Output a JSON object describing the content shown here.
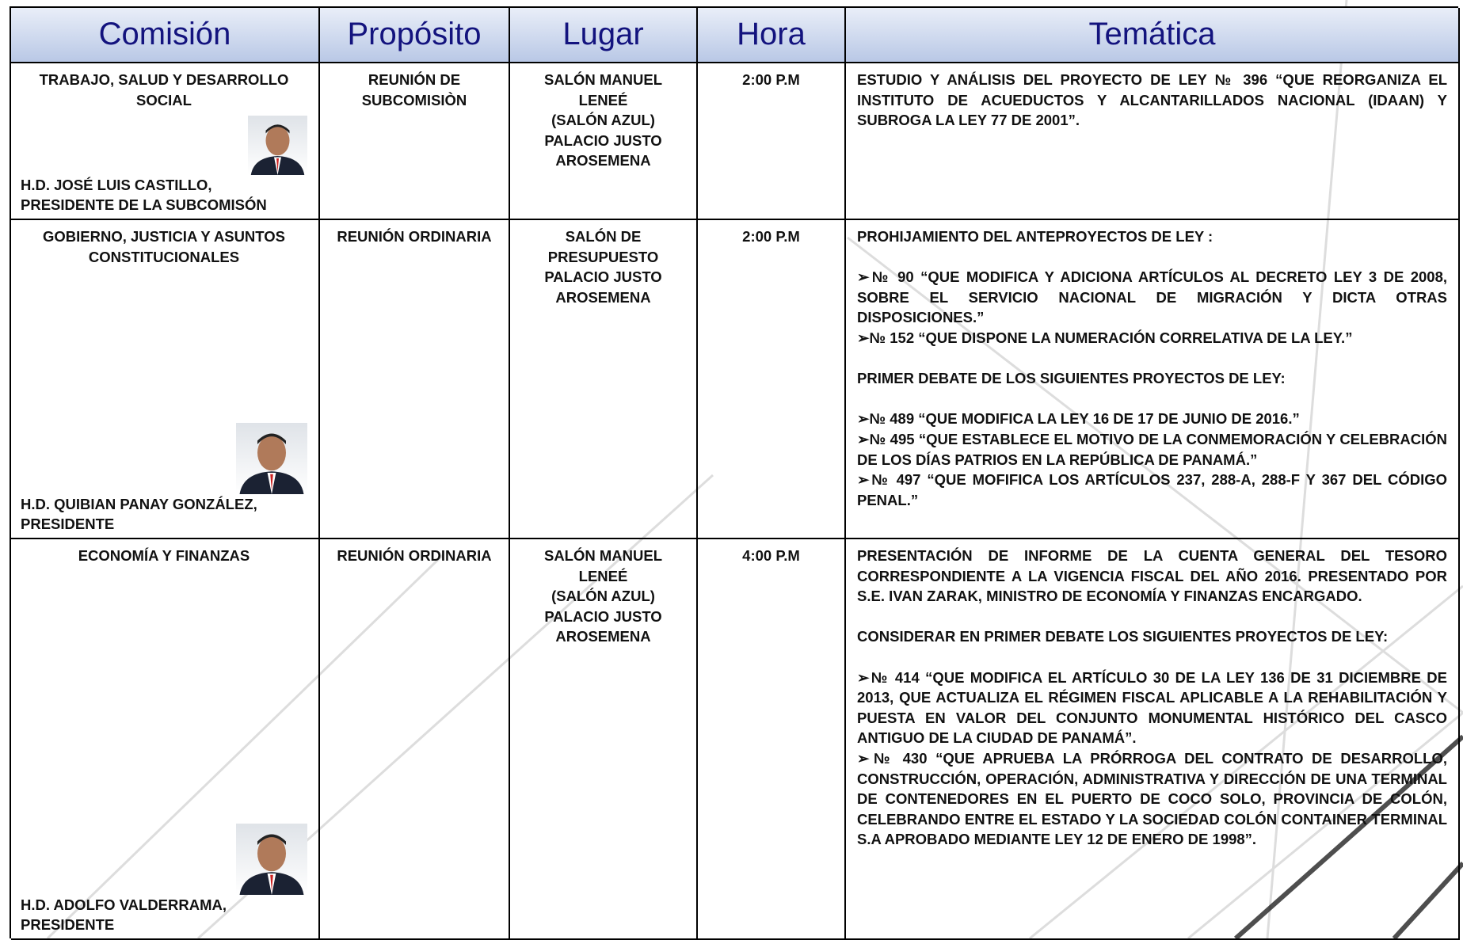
{
  "table": {
    "headers": [
      "Comisión",
      "Propósito",
      "Lugar",
      "Hora",
      "Temática"
    ],
    "rows": [
      {
        "comision": "TRABAJO, SALUD Y DESARROLLO SOCIAL",
        "presidente": "H.D.  JOSÉ LUIS CASTILLO, PRESIDENTE DE LA SUBCOMISÓN",
        "proposito": "REUNIÓN DE SUBCOMISIÒN",
        "lugar": [
          "SALÓN MANUEL LENEÉ",
          "(SALÓN AZUL)",
          "PALACIO JUSTO AROSEMENA"
        ],
        "hora": "2:00 P.M",
        "tematica": [
          [
            "ESTUDIO Y ANÁLISIS DEL PROYECTO DE LEY № 396 “QUE REORGANIZA EL INSTITUTO DE ACUEDUCTOS Y ALCANTARILLADOS NACIONAL (IDAAN) Y SUBROGA LA LEY 77 DE 2001”."
          ]
        ]
      },
      {
        "comision": "GOBIERNO,  JUSTICIA  Y ASUNTOS  CONSTITUCIONALES",
        "presidente": "H.D.  QUIBIAN PANAY GONZÁLEZ, PRESIDENTE",
        "proposito": "REUNIÓN ORDINARIA",
        "lugar": [
          "SALÓN DE PRESUPUESTO",
          "PALACIO JUSTO AROSEMENA"
        ],
        "hora": "2:00 P.M",
        "tematica": [
          [
            "PROHIJAMIENTO DEL ANTEPROYECTOS DE LEY :"
          ],
          [
            "➢№ 90 “QUE MODIFICA Y ADICIONA ARTÍCULOS AL DECRETO LEY 3 DE 2008, SOBRE EL SERVICIO NACIONAL DE MIGRACIÓN Y DICTA OTRAS DISPOSICIONES.”",
            "➢№ 152 “QUE DISPONE LA NUMERACIÓN CORRELATIVA DE LA LEY.”"
          ],
          [
            "PRIMER DEBATE DE LOS SIGUIENTES PROYECTOS DE LEY:"
          ],
          [
            "➢№ 489 “QUE MODIFICA LA LEY 16 DE 17 DE JUNIO DE 2016.”",
            "➢№ 495 “QUE ESTABLECE EL MOTIVO DE LA CONMEMORACIÓN Y CELEBRACIÓN DE LOS DÍAS PATRIOS EN LA REPÚBLICA DE PANAMÁ.”",
            "➢№ 497 “QUE MOFIFICA LOS ARTÍCULOS 237, 288-A, 288-F Y 367 DEL CÓDIGO PENAL.”"
          ]
        ]
      },
      {
        "comision": "ECONOMÍA Y FINANZAS",
        "presidente": "H.D. ADOLFO VALDERRAMA, PRESIDENTE",
        "proposito": "REUNIÓN ORDINARIA",
        "lugar": [
          "SALÓN MANUEL LENEÉ",
          "(SALÓN AZUL)",
          "PALACIO JUSTO AROSEMENA"
        ],
        "hora": "4:00 P.M",
        "tematica": [
          [
            "PRESENTACIÓN DE INFORME DE LA CUENTA  GENERAL DEL TESORO CORRESPONDIENTE A LA VIGENCIA FISCAL DEL AÑO 2016. PRESENTADO POR S.E. IVAN ZARAK, MINISTRO DE ECONOMÍA Y FINANZAS ENCARGADO."
          ],
          [
            "CONSIDERAR EN PRIMER DEBATE LOS SIGUIENTES PROYECTOS DE LEY:"
          ],
          [
            "➢№ 414 “QUE MODIFICA EL ARTÍCULO 30 DE LA LEY 136 DE 31 DICIEMBRE DE 2013, QUE ACTUALIZA EL RÉGIMEN FISCAL APLICABLE A LA REHABILITACIÓN Y PUESTA EN VALOR DEL CONJUNTO MONUMENTAL HISTÓRICO DEL CASCO ANTIGUO DE LA CIUDAD DE PANAMÁ”.",
            "➢№ 430 “QUE APRUEBA LA PRÓRROGA DEL CONTRATO DE DESARROLLO, CONSTRUCCIÓN, OPERACIÓN, ADMINISTRATIVA Y DIRECCIÓN DE UNA TERMINAL DE CONTENEDORES EN EL PUERTO DE COCO SOLO, PROVINCIA DE COLÓN, CELEBRANDO ENTRE EL ESTADO Y LA SOCIEDAD COLÓN CONTAINER TERMINAL S.A APROBADO MEDIANTE LEY 12 DE ENERO DE 1998”."
          ]
        ]
      }
    ]
  }
}
